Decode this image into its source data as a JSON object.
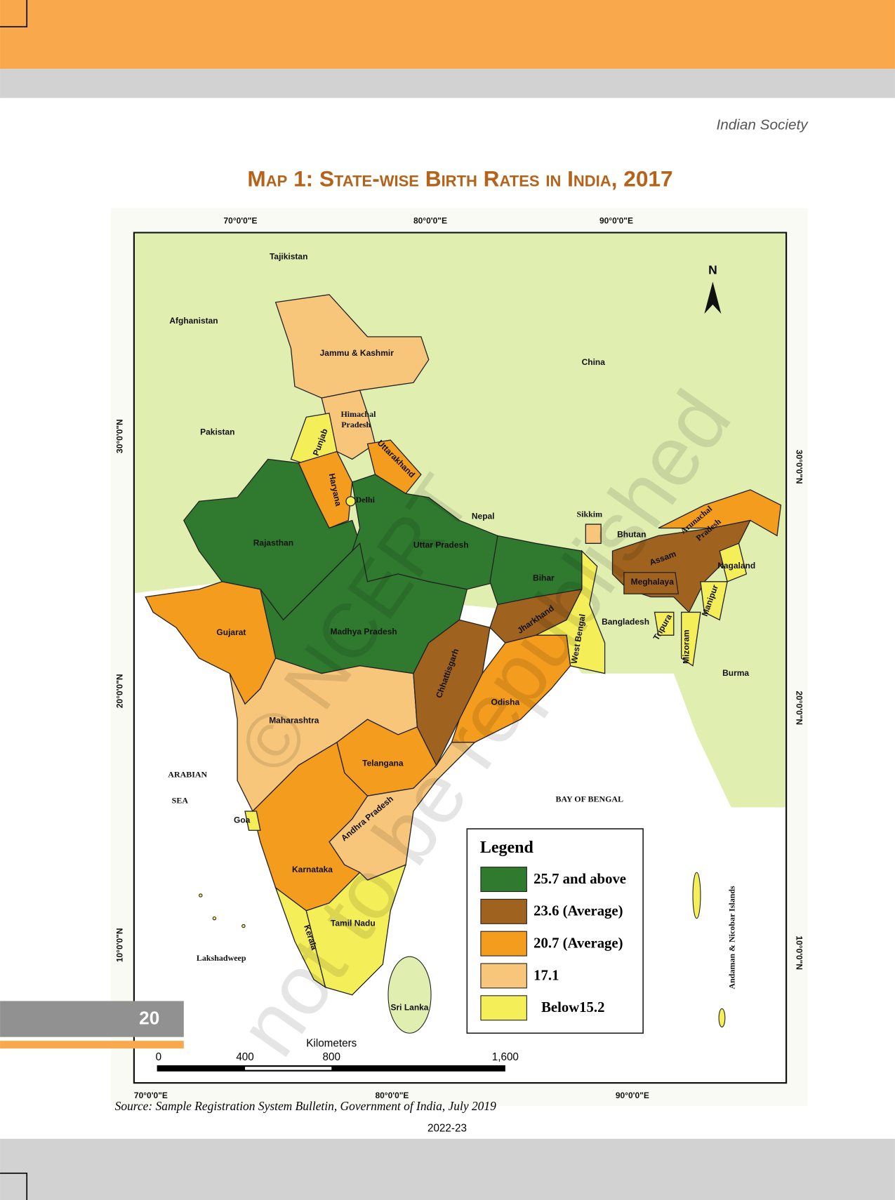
{
  "header": {
    "running_title": "Indian Society"
  },
  "map": {
    "title": "Map 1: State-wise Birth Rates in India, 2017",
    "coords_top": [
      "70°0'0\"E",
      "80°0'0\"E",
      "90°0'0\"E"
    ],
    "coords_bottom": [
      "70°0'0\"E",
      "80°0'0\"E",
      "90°0'0\"E"
    ],
    "coords_left": [
      "30°0'0\"N",
      "20°0'0\"N",
      "10°0'0\"N"
    ],
    "coords_right": [
      "30°0'0\"N",
      "20°0'0\"N",
      "10°0'0\"N"
    ],
    "north": "N",
    "places": [
      "Tajikistan",
      "Afghanistan",
      "Pakistan",
      "China",
      "Nepal",
      "Bhutan",
      "Bangladesh",
      "Burma",
      "Sri Lanka",
      "Jammu & Kashmir",
      "Himachal",
      "Pradesh",
      "Punjab",
      "Haryana",
      "Delhi",
      "Uttarakhand",
      "Rajasthan",
      "Uttar Pradesh",
      "Bihar",
      "Sikkim",
      "Assam",
      "Meghalaya",
      "Arunachal",
      "Pradesh",
      "Nagaland",
      "Manipur",
      "Mizoram",
      "Tripura",
      "Gujarat",
      "Madhya Pradesh",
      "Jharkhand",
      "West Bengal",
      "Chhattisgarh",
      "Odisha",
      "Maharashtra",
      "Telangana",
      "Andhra Pradesh",
      "Goa",
      "Karnataka",
      "Tamil Nadu",
      "Kerala",
      "Lakshadweep",
      "Andaman & Nicobar Islands",
      "ARABIAN",
      "SEA",
      "BAY OF BENGAL"
    ],
    "legend": {
      "title": "Legend",
      "items": [
        {
          "label": "25.7 and above",
          "color": "#2f7a2f"
        },
        {
          "label": "23.6 (Average)",
          "color": "#a0621f"
        },
        {
          "label": "20.7 (Average)",
          "color": "#f39c1e"
        },
        {
          "label": "17.1",
          "color": "#f8c67a"
        },
        {
          "label": "Below15.2",
          "color": "#f4ee58"
        }
      ]
    },
    "scale": {
      "title": "Kilometers",
      "labels": [
        "0",
        "400",
        "800",
        "1,600"
      ]
    },
    "watermark": [
      "© NCERT",
      "not to be republished"
    ]
  },
  "source": "Source: Sample Registration System  Bulletin, Government of India, July 2019",
  "footer": {
    "page_number": "20",
    "year": "2022-23"
  }
}
